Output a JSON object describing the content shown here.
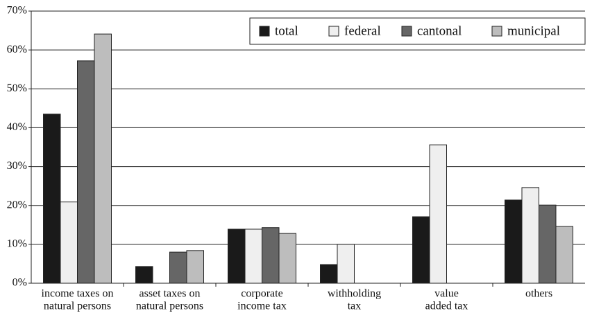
{
  "chart_data": {
    "type": "bar",
    "categories": [
      [
        "income taxes on",
        "natural persons"
      ],
      [
        "asset taxes on",
        "natural persons"
      ],
      [
        "corporate",
        "income tax"
      ],
      [
        "withholding",
        "tax"
      ],
      [
        "value",
        "added tax"
      ],
      [
        "others"
      ]
    ],
    "series": [
      {
        "name": "total",
        "color": "#1a1a1a",
        "values": [
          43.5,
          4.3,
          13.9,
          4.8,
          17.1,
          21.4
        ]
      },
      {
        "name": "federal",
        "color": "#efefef",
        "values": [
          20.9,
          0,
          13.9,
          10.0,
          35.6,
          24.6
        ]
      },
      {
        "name": "cantonal",
        "color": "#666666",
        "values": [
          57.2,
          8.0,
          14.3,
          0,
          0,
          20.1
        ]
      },
      {
        "name": "municipal",
        "color": "#bdbdbd",
        "values": [
          64.1,
          8.4,
          12.8,
          0,
          0,
          14.6
        ]
      }
    ],
    "ylim": [
      0,
      70
    ],
    "yticks": [
      {
        "value": 0,
        "label": "0%"
      },
      {
        "value": 10,
        "label": "10%"
      },
      {
        "value": 20,
        "label": "20%"
      },
      {
        "value": 30,
        "label": "30%"
      },
      {
        "value": 40,
        "label": "40%"
      },
      {
        "value": 50,
        "label": "50%"
      },
      {
        "value": 60,
        "label": "60%"
      },
      {
        "value": 70,
        "label": "70%"
      }
    ],
    "grid": true,
    "legend": "top-right"
  }
}
